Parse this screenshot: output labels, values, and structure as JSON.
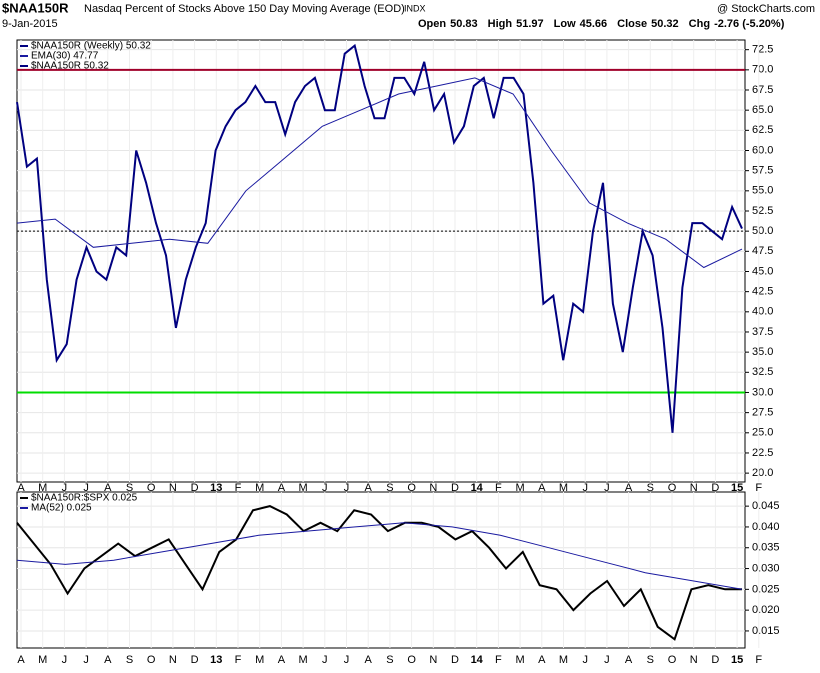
{
  "header": {
    "symbol": "$NAA150R",
    "description": "Nasdaq Percent of Stocks Above 150 Day Moving Average (EOD)",
    "exchange": "INDX",
    "date": "9-Jan-2015",
    "source": "@ StockCharts.com",
    "quote": [
      {
        "label": "Open",
        "value": 50.83
      },
      {
        "label": "High",
        "value": 51.97
      },
      {
        "label": "Low",
        "value": 45.66
      },
      {
        "label": "Close",
        "value": 50.32
      },
      {
        "label": "Chg",
        "value": "-2.76 (-5.20%)"
      }
    ]
  },
  "chart_data": [
    {
      "type": "line",
      "x_labels": [
        "A",
        "M",
        "J",
        "J",
        "A",
        "S",
        "O",
        "N",
        "D",
        "13",
        "F",
        "M",
        "A",
        "M",
        "J",
        "J",
        "A",
        "S",
        "O",
        "N",
        "D",
        "14",
        "F",
        "M",
        "A",
        "M",
        "J",
        "J",
        "A",
        "S",
        "O",
        "N",
        "D",
        "15",
        "F"
      ],
      "ylim": [
        18.9,
        73.7
      ],
      "yticks": [
        {
          "value": 20,
          "label": "20.0"
        },
        {
          "value": 22.5,
          "label": "22.5"
        },
        {
          "value": 25,
          "label": "25.0"
        },
        {
          "value": 27.5,
          "label": "27.5"
        },
        {
          "value": 30,
          "label": "30.0"
        },
        {
          "value": 32.5,
          "label": "32.5"
        },
        {
          "value": 35,
          "label": "35.0"
        },
        {
          "value": 37.5,
          "label": "37.5"
        },
        {
          "value": 40,
          "label": "40.0"
        },
        {
          "value": 42.5,
          "label": "42.5"
        },
        {
          "value": 45,
          "label": "45.0"
        },
        {
          "value": 47.5,
          "label": "47.5"
        },
        {
          "value": 50,
          "label": "50.0"
        },
        {
          "value": 52.5,
          "label": "52.5"
        },
        {
          "value": 55,
          "label": "55.0"
        },
        {
          "value": 57.5,
          "label": "57.5"
        },
        {
          "value": 60,
          "label": "60.0"
        },
        {
          "value": 62.5,
          "label": "62.5"
        },
        {
          "value": 65,
          "label": "65.0"
        },
        {
          "value": 67.5,
          "label": "67.5"
        },
        {
          "value": 70,
          "label": "70.0"
        },
        {
          "value": 72.5,
          "label": "72.5"
        }
      ],
      "grid": true,
      "hlines": [
        {
          "value": 70,
          "color": "#a0002a",
          "style": "solid"
        },
        {
          "value": 30,
          "color": "#00dd00",
          "style": "solid"
        },
        {
          "value": 50,
          "color": "#000000",
          "style": "dotted"
        }
      ],
      "series": [
        {
          "name": "$NAA150R (Weekly) 50.32",
          "color": "#000080",
          "values": [
            66,
            58,
            59,
            44,
            34,
            36,
            44,
            48,
            45,
            44,
            48,
            47,
            60,
            56,
            51,
            47,
            38,
            44,
            48,
            51,
            60,
            63,
            65,
            66,
            68,
            66,
            66,
            62,
            66,
            68,
            69,
            65,
            65,
            72,
            73,
            68,
            64,
            64,
            69,
            69,
            67,
            71,
            65,
            67,
            61,
            63,
            68,
            69,
            64,
            69,
            69,
            67,
            56,
            41,
            42,
            34,
            41,
            40,
            50,
            56,
            41,
            35,
            43,
            50,
            47,
            38,
            25,
            43,
            51,
            51,
            50,
            49,
            53,
            50.32
          ]
        },
        {
          "name": "EMA(30) 47.77",
          "color": "#1a1aa0",
          "values": [
            51,
            51.5,
            48,
            48.5,
            49,
            48.5,
            55,
            59,
            63,
            65,
            67,
            68,
            69,
            67,
            60,
            53.5,
            51,
            49,
            45.5,
            47.77
          ]
        },
        {
          "name": "$NAA150R 50.32",
          "color": "#000080",
          "values": []
        }
      ]
    },
    {
      "type": "line",
      "x_labels": [
        "A",
        "M",
        "J",
        "J",
        "A",
        "S",
        "O",
        "N",
        "D",
        "13",
        "F",
        "M",
        "A",
        "M",
        "J",
        "J",
        "A",
        "S",
        "O",
        "N",
        "D",
        "14",
        "F",
        "M",
        "A",
        "M",
        "J",
        "J",
        "A",
        "S",
        "O",
        "N",
        "D",
        "15",
        "F"
      ],
      "ylim": [
        0.0109,
        0.0484
      ],
      "yticks": [
        {
          "value": 0.015,
          "label": "0.015"
        },
        {
          "value": 0.02,
          "label": "0.020"
        },
        {
          "value": 0.025,
          "label": "0.025"
        },
        {
          "value": 0.03,
          "label": "0.030"
        },
        {
          "value": 0.035,
          "label": "0.035"
        },
        {
          "value": 0.04,
          "label": "0.040"
        },
        {
          "value": 0.045,
          "label": "0.045"
        }
      ],
      "grid": true,
      "series": [
        {
          "name": "$NAA150R:$SPX 0.025",
          "color": "#000000",
          "values": [
            0.041,
            0.036,
            0.031,
            0.024,
            0.03,
            0.033,
            0.036,
            0.033,
            0.035,
            0.037,
            0.031,
            0.025,
            0.034,
            0.037,
            0.044,
            0.045,
            0.043,
            0.039,
            0.041,
            0.039,
            0.044,
            0.043,
            0.039,
            0.041,
            0.041,
            0.04,
            0.037,
            0.039,
            0.035,
            0.03,
            0.034,
            0.026,
            0.025,
            0.02,
            0.024,
            0.027,
            0.021,
            0.025,
            0.016,
            0.013,
            0.025,
            0.026,
            0.025,
            0.025
          ]
        },
        {
          "name": "MA(52) 0.025",
          "color": "#1a1aa0",
          "values": [
            0.032,
            0.031,
            0.032,
            0.034,
            0.036,
            0.038,
            0.039,
            0.04,
            0.041,
            0.04,
            0.038,
            0.035,
            0.032,
            0.029,
            0.027,
            0.025
          ]
        }
      ]
    }
  ]
}
